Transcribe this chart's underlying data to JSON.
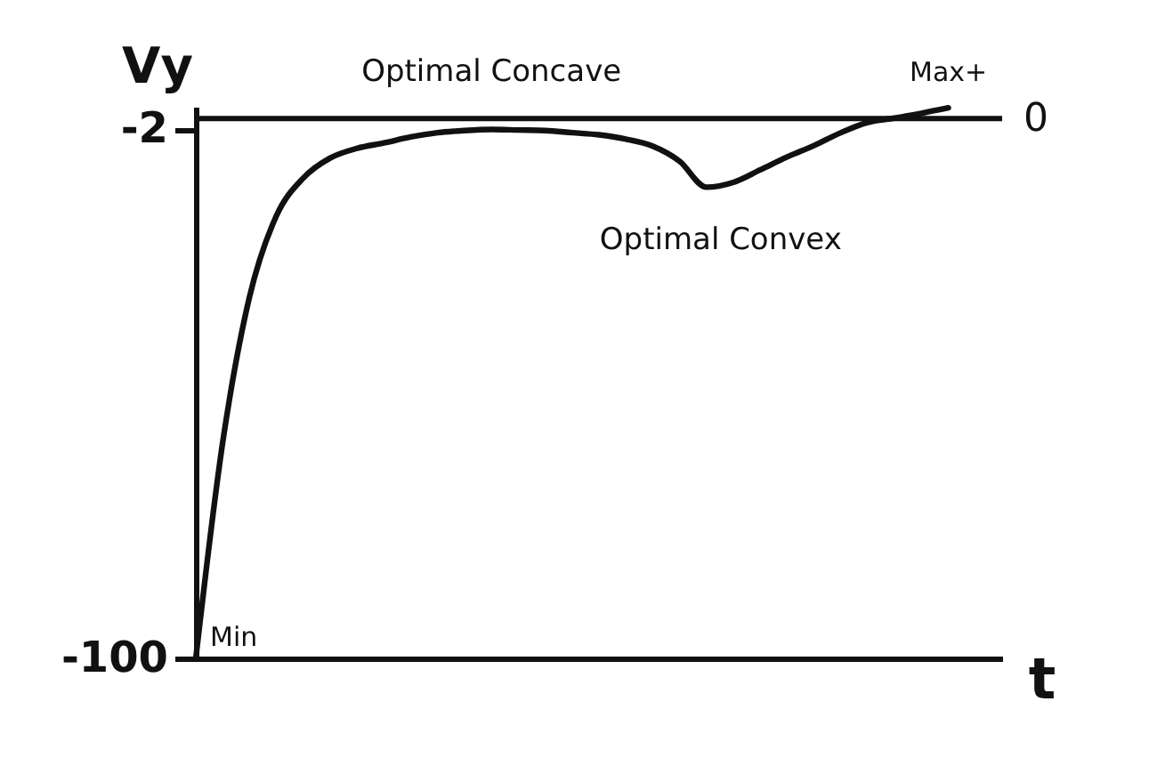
{
  "chart_data": {
    "type": "line",
    "xlabel": "t",
    "ylabel": "Vy",
    "categories": [
      null,
      null,
      null,
      null,
      null,
      null,
      null,
      null,
      null,
      null,
      null,
      null,
      null,
      null,
      null,
      null,
      null,
      null,
      null,
      null,
      null,
      null,
      null,
      null,
      null,
      null,
      null,
      null,
      null,
      null,
      null
    ],
    "series": [
      {
        "color": "#111111",
        "values": [
          -100,
          -60,
          -33,
          -18,
          -11,
          -7.3,
          -5.5,
          -4.5,
          -3.4,
          -2.6,
          -2.2,
          -2,
          -2.1,
          -2.2,
          -2.6,
          -3.0,
          -3.8,
          -5.1,
          -7.9,
          -12.7,
          -11.8,
          -9.5,
          -7.1,
          -5.0,
          -2.6,
          -0.7,
          0.1,
          1.0,
          2.0,
          null,
          null
        ]
      }
    ],
    "ylim": [
      -100,
      2.2
    ],
    "yticks": [
      -100,
      -2
    ],
    "tick_labels": "y",
    "ref_lines": [
      {
        "axis": "y",
        "value": 0,
        "label": "0",
        "color": "#111111"
      }
    ],
    "annotations": [
      "Min",
      {
        "text": "Optimal Concave",
        "y": -2
      },
      {
        "text": "Optimal Convex",
        "y": -12.7
      },
      "Max+"
    ],
    "grid": false,
    "marker": "none",
    "line_style": "solid"
  }
}
